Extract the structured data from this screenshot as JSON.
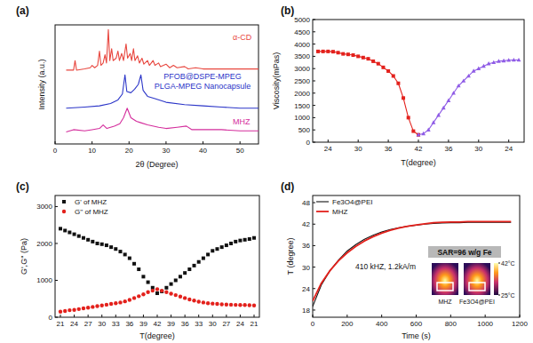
{
  "chart_data": [
    {
      "type": "line",
      "title": "(a)",
      "x_label": "2θ (Degree)",
      "y_label": "Intensity (a.u.)",
      "xlim": [
        0,
        55
      ],
      "xticks": [
        0,
        10,
        20,
        30,
        40,
        50
      ],
      "ylim": [
        0,
        100
      ],
      "tick_labels": "x",
      "series": [
        {
          "name": "α-CD",
          "color": "#e8473f",
          "x": [
            3,
            5,
            5.4,
            5.8,
            8,
            9.5,
            10,
            10.7,
            11.5,
            12,
            12.4,
            13,
            13.5,
            13.9,
            14.4,
            14.8,
            15.3,
            15.7,
            16.5,
            17,
            17.4,
            18,
            18.5,
            19.2,
            19.6,
            20.3,
            20.7,
            21.2,
            21.6,
            22.3,
            22.8,
            23.5,
            24,
            25,
            25.5,
            26.5,
            27,
            28,
            28.5,
            30,
            31,
            32,
            33,
            35,
            36,
            38,
            40,
            44,
            47,
            50,
            55
          ],
          "values": [
            62,
            62,
            70,
            62,
            63,
            64,
            66,
            64,
            66,
            78,
            66,
            68,
            75,
            68,
            96,
            70,
            80,
            70,
            72,
            78,
            70,
            76,
            70,
            84,
            72,
            76,
            70,
            80,
            70,
            74,
            68,
            72,
            67,
            70,
            66,
            70,
            66,
            68,
            65,
            67,
            64,
            66,
            64,
            65,
            63,
            64,
            63,
            63,
            63,
            63,
            63
          ]
        },
        {
          "name": "PFOB@DSPE-MPEG PLGA-MPEG Nanocapsule",
          "color": "#2b35c8",
          "x": [
            3,
            8,
            12,
            15,
            17,
            18.2,
            18.9,
            19.4,
            20.5,
            21.5,
            22.5,
            23.2,
            23.8,
            25,
            27,
            30,
            35,
            40,
            45,
            50,
            55
          ],
          "values": [
            30,
            31,
            32,
            34,
            37,
            42,
            58,
            44,
            43,
            46,
            50,
            58,
            45,
            40,
            38,
            35,
            33,
            32,
            31,
            30,
            30
          ]
        },
        {
          "name": "MHZ",
          "color": "#d42d9c",
          "x": [
            3,
            5,
            8,
            10,
            12,
            13,
            14,
            16,
            17.5,
            18.5,
            19.5,
            20.5,
            22,
            23,
            25,
            28,
            30,
            33,
            35.5,
            37,
            40,
            45,
            50,
            55
          ],
          "values": [
            10,
            12,
            11,
            12,
            13,
            16,
            13,
            15,
            17,
            22,
            30,
            22,
            19,
            18,
            16,
            14,
            13,
            14,
            15,
            12,
            12,
            12,
            11,
            11
          ]
        }
      ]
    },
    {
      "type": "line",
      "title": "(b)",
      "x_label": "T(degree)",
      "y_label": "Viscosity(mPas)",
      "categories": [
        null,
        null,
        "24",
        null,
        null,
        null,
        null,
        null,
        "30",
        null,
        null,
        null,
        null,
        null,
        "36",
        null,
        null,
        null,
        null,
        null,
        "42",
        null,
        null,
        null,
        null,
        null,
        "36",
        null,
        null,
        null,
        null,
        null,
        "30",
        null,
        null,
        null,
        null,
        null,
        "24",
        null,
        null
      ],
      "ylim": [
        0,
        5000
      ],
      "yticks": [
        0,
        500,
        1000,
        1500,
        2000,
        2500,
        3000,
        3500,
        4000,
        4500,
        5000
      ],
      "series": [
        {
          "color": "#e3211c",
          "marker": "square",
          "values": [
            3700,
            3700,
            3700,
            3690,
            3650,
            3600,
            3580,
            3550,
            3500,
            3450,
            3400,
            3300,
            3200,
            3050,
            2900,
            2700,
            2400,
            1800,
            1000,
            450,
            300,
            null,
            null,
            null,
            null,
            null,
            null,
            null,
            null,
            null,
            null,
            null,
            null,
            null,
            null,
            null,
            null,
            null,
            null,
            null,
            null
          ]
        },
        {
          "color": "#8f5ce6",
          "marker": "triangle",
          "values": [
            null,
            null,
            null,
            null,
            null,
            null,
            null,
            null,
            null,
            null,
            null,
            null,
            null,
            null,
            null,
            null,
            null,
            null,
            null,
            null,
            300,
            350,
            500,
            800,
            1100,
            1400,
            1700,
            2000,
            2300,
            2500,
            2700,
            2900,
            3000,
            3100,
            3200,
            3250,
            3300,
            3320,
            3340,
            3350,
            3350
          ]
        }
      ]
    },
    {
      "type": "scatter",
      "title": "(c)",
      "x_label": "T(degree)",
      "y_label": "G',G'' (Pa)",
      "categories": [
        "21",
        null,
        null,
        "24",
        null,
        null,
        "27",
        null,
        null,
        "30",
        null,
        null,
        "33",
        null,
        null,
        "36",
        null,
        null,
        "39",
        null,
        null,
        "42",
        null,
        null,
        "39",
        null,
        null,
        "36",
        null,
        null,
        "33",
        null,
        null,
        "30",
        null,
        null,
        "27",
        null,
        null,
        "24",
        null,
        null,
        "21"
      ],
      "ylim": [
        0,
        3300
      ],
      "yticks": [
        0,
        1000,
        2000,
        3000
      ],
      "legend": "upper left",
      "series": [
        {
          "name": "G' of MHZ",
          "color": "#111111",
          "marker": "square",
          "values": [
            2400,
            2350,
            2300,
            2250,
            2200,
            2150,
            2100,
            2050,
            2000,
            1980,
            1950,
            1900,
            1850,
            1780,
            1700,
            1600,
            1450,
            1300,
            1100,
            950,
            800,
            650,
            700,
            800,
            900,
            1000,
            1100,
            1200,
            1300,
            1400,
            1500,
            1600,
            1700,
            1800,
            1850,
            1900,
            1950,
            2000,
            2050,
            2080,
            2100,
            2120,
            2150
          ]
        },
        {
          "name": "G'' of MHZ",
          "color": "#e3211c",
          "marker": "circle",
          "values": [
            150,
            170,
            190,
            200,
            220,
            240,
            260,
            280,
            300,
            320,
            340,
            360,
            380,
            400,
            430,
            470,
            520,
            570,
            620,
            680,
            720,
            760,
            720,
            680,
            640,
            600,
            560,
            520,
            480,
            450,
            420,
            400,
            380,
            370,
            360,
            350,
            345,
            340,
            335,
            330,
            330,
            325,
            320
          ]
        }
      ]
    },
    {
      "type": "line",
      "title": "(d)",
      "x_label": "Time (s)",
      "y_label": "T (degree)",
      "x": [
        0,
        50,
        100,
        150,
        200,
        250,
        300,
        350,
        400,
        450,
        500,
        550,
        600,
        650,
        700,
        750,
        800,
        850,
        900,
        950,
        1000,
        1050,
        1100,
        1150
      ],
      "xlim": [
        0,
        1200
      ],
      "xticks": [
        0,
        200,
        400,
        600,
        800,
        1000,
        1200
      ],
      "ylim": [
        16,
        50
      ],
      "yticks": [
        18,
        24,
        30,
        36,
        42,
        48
      ],
      "legend": "upper left",
      "series": [
        {
          "name": "Fe3O4@PEI",
          "color": "#111111",
          "values": [
            19,
            25,
            29,
            32,
            34.5,
            36.3,
            37.8,
            38.9,
            39.8,
            40.5,
            41,
            41.4,
            41.7,
            42,
            42.2,
            42.3,
            42.4,
            42.4,
            42.5,
            42.5,
            42.5,
            42.5,
            42.5,
            42.5
          ]
        },
        {
          "name": "MHZ",
          "color": "#e3211c",
          "values": [
            20.5,
            25.5,
            29,
            31.8,
            34,
            35.8,
            37.3,
            38.5,
            39.5,
            40.3,
            40.9,
            41.4,
            41.8,
            42.1,
            42.4,
            42.5,
            42.6,
            42.6,
            42.7,
            42.7,
            42.7,
            42.7,
            42.7,
            42.7
          ]
        }
      ],
      "annotations": [
        "410 kHZ, 1.2kA/m",
        "SAR=96 w/g Fe"
      ],
      "inset": {
        "labels": [
          "MHZ",
          "Fe3O4@PEI"
        ],
        "colorbar": {
          "range": [
            25,
            42
          ],
          "ticks": [
            {
              "value": 42,
              "label": "42°C"
            },
            {
              "value": 25,
              "label": "25°C"
            }
          ]
        }
      }
    }
  ]
}
